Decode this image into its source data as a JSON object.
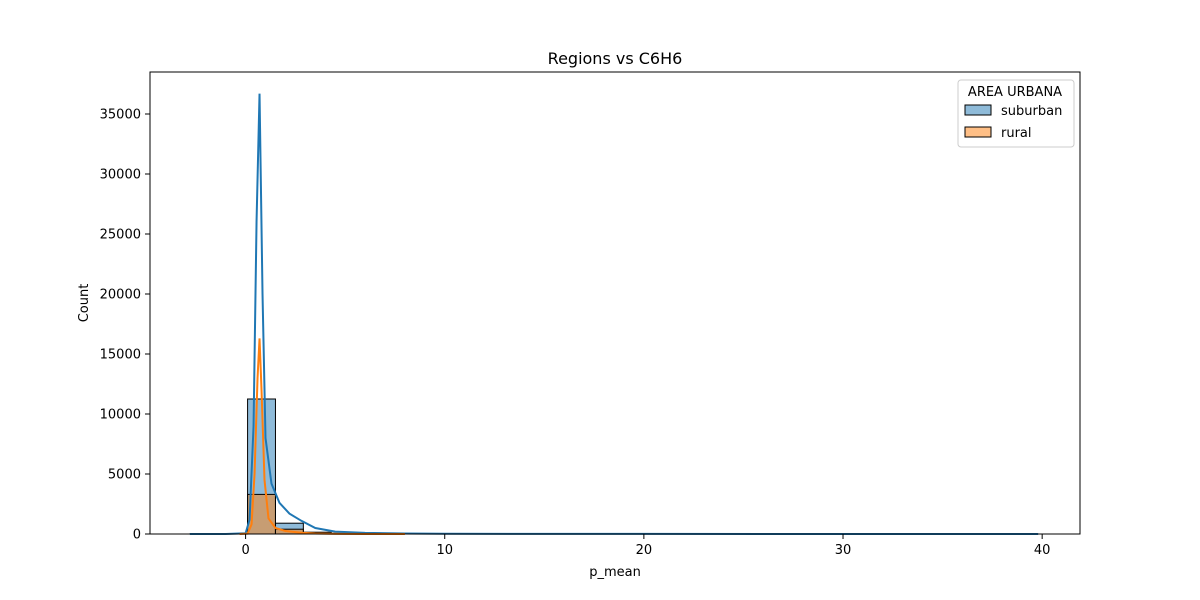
{
  "chart_data": {
    "type": "histogram",
    "title": "Regions vs C6H6",
    "xlabel": "p_mean",
    "ylabel": "Count",
    "xlim": [
      -4.8,
      41.9
    ],
    "ylim": [
      0,
      38500
    ],
    "xticks": [
      0,
      10,
      20,
      30,
      40
    ],
    "yticks": [
      0,
      5000,
      10000,
      15000,
      20000,
      25000,
      30000,
      35000
    ],
    "grid": false,
    "legend": {
      "title": "AREA URBANA",
      "placement": "top-right"
    },
    "bin_edges": [
      -2.8,
      -1.4,
      0.1,
      1.5,
      2.9,
      4.3,
      5.7,
      7.1,
      8.5,
      9.9,
      11.3,
      12.7,
      14.1,
      15.5,
      16.9,
      18.3,
      19.7,
      21.1,
      22.5,
      23.9,
      25.3,
      26.7,
      28.1,
      29.5,
      30.9,
      32.3,
      33.7,
      35.1,
      36.5,
      37.9,
      39.8
    ],
    "series": [
      {
        "name": "suburban",
        "color": "#1f77b4",
        "counts": [
          5,
          20,
          11250,
          900,
          150,
          60,
          30,
          15,
          10,
          8,
          5,
          4,
          3,
          3,
          2,
          2,
          2,
          1,
          1,
          1,
          1,
          1,
          1,
          1,
          1,
          1,
          1,
          1,
          1,
          1
        ],
        "kde": [
          [
            -2.8,
            0
          ],
          [
            -1.0,
            5
          ],
          [
            0.0,
            60
          ],
          [
            0.2,
            1200
          ],
          [
            0.4,
            9000
          ],
          [
            0.55,
            26000
          ],
          [
            0.7,
            36700
          ],
          [
            0.85,
            20000
          ],
          [
            1.0,
            8000
          ],
          [
            1.3,
            4200
          ],
          [
            1.7,
            2600
          ],
          [
            2.2,
            1700
          ],
          [
            2.8,
            1100
          ],
          [
            3.5,
            500
          ],
          [
            4.5,
            200
          ],
          [
            6,
            90
          ],
          [
            8,
            45
          ],
          [
            10,
            25
          ],
          [
            15,
            10
          ],
          [
            20,
            6
          ],
          [
            30,
            3
          ],
          [
            39.8,
            1
          ]
        ]
      },
      {
        "name": "rural",
        "color": "#ff7f0e",
        "counts": [
          0,
          5,
          3300,
          400,
          60,
          20,
          8,
          4,
          2,
          1,
          1,
          0,
          0,
          0,
          0,
          0,
          0,
          0,
          0,
          0,
          0,
          0,
          0,
          0,
          0,
          0,
          0,
          0,
          0,
          0
        ],
        "kde": [
          [
            -0.3,
            0
          ],
          [
            0.1,
            30
          ],
          [
            0.3,
            800
          ],
          [
            0.45,
            5000
          ],
          [
            0.6,
            13000
          ],
          [
            0.7,
            16300
          ],
          [
            0.8,
            12000
          ],
          [
            0.95,
            4500
          ],
          [
            1.15,
            1300
          ],
          [
            1.5,
            500
          ],
          [
            2.0,
            250
          ],
          [
            2.8,
            100
          ],
          [
            3.5,
            40
          ],
          [
            4.5,
            10
          ],
          [
            6,
            2
          ],
          [
            8,
            0
          ]
        ]
      }
    ]
  }
}
